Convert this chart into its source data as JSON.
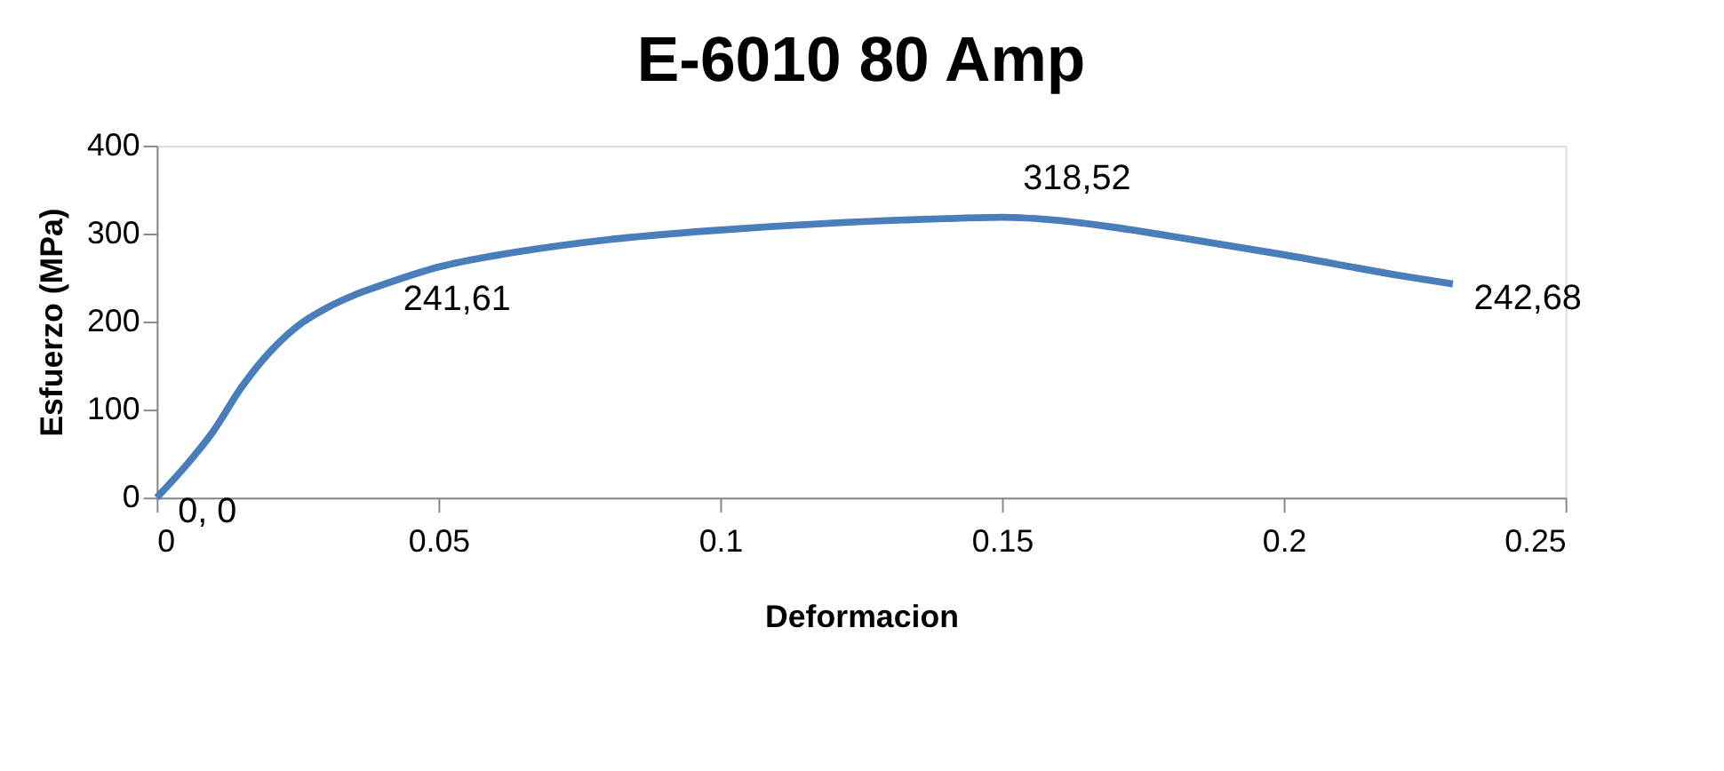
{
  "chart_data": {
    "type": "line",
    "title": "E-6010 80 Amp",
    "xlabel": "Deformacion",
    "ylabel": "Esfuerzo (MPa)",
    "x": [
      0,
      0.005,
      0.01,
      0.015,
      0.02,
      0.025,
      0.03,
      0.035,
      0.04,
      0.05,
      0.06,
      0.07,
      0.08,
      0.1,
      0.12,
      0.14,
      0.15,
      0.16,
      0.17,
      0.18,
      0.2,
      0.22,
      0.23
    ],
    "series": [
      {
        "color": "#4a7ebb",
        "values": [
          0,
          35,
          75,
          125,
          165,
          195,
          215,
          230,
          241.61,
          262,
          275,
          285,
          293,
          304,
          312,
          317,
          318.52,
          315,
          307,
          297,
          276,
          253,
          242.68
        ],
        "value_labels": [
          "0, 0",
          null,
          null,
          null,
          null,
          null,
          null,
          null,
          "241,61",
          null,
          null,
          null,
          null,
          null,
          null,
          null,
          "318,52",
          null,
          null,
          null,
          null,
          null,
          "242,68"
        ]
      }
    ],
    "xlim": [
      0,
      0.25
    ],
    "xticks": [
      0,
      0.05,
      0.1,
      0.15,
      0.2,
      0.25
    ],
    "ylim": [
      0,
      400
    ],
    "yticks": [
      0,
      100,
      200,
      300,
      400
    ],
    "grid": false,
    "legend": false,
    "marker": "none",
    "line_style": "solid"
  }
}
